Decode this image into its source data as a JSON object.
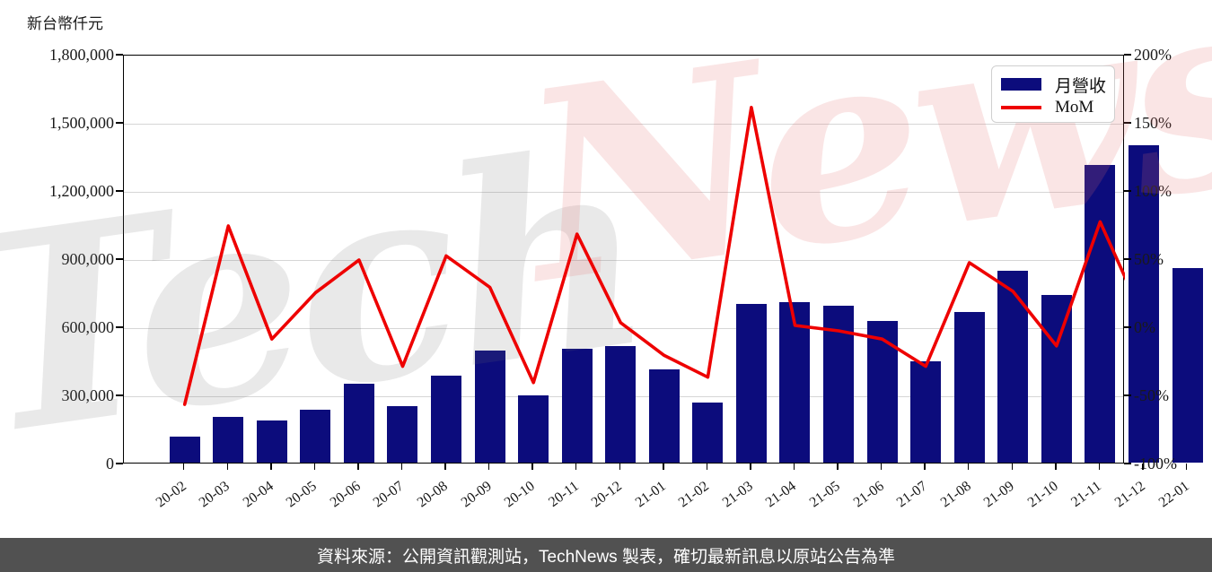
{
  "chart_title": "新台幣仟元",
  "legend": {
    "bar_label": "月營收",
    "line_label": "MoM"
  },
  "watermark": {
    "gray_text": "Tech",
    "pink_text": "News"
  },
  "footer": {
    "text": "資料來源：公開資訊觀測站，TechNews 製表，確切最新訊息以原站公告為準"
  },
  "colors": {
    "bar": "#0c0c7c",
    "line": "#ee0000",
    "grid": "#d6d6d6",
    "axis": "#000000",
    "footer_bg": "#515151",
    "footer_text": "#ffffff",
    "watermark_gray": "rgba(110,110,110,0.15)",
    "watermark_pink": "rgba(228,110,110,0.18)"
  },
  "chart_data": {
    "type": "bar",
    "subtype": "bar+line dual-axis combo",
    "title": "新台幣仟元",
    "categories": [
      "20-02",
      "20-03",
      "20-04",
      "20-05",
      "20-06",
      "20-07",
      "20-08",
      "20-09",
      "20-10",
      "20-11",
      "20-12",
      "21-01",
      "21-02",
      "21-03",
      "21-04",
      "21-05",
      "21-06",
      "21-07",
      "21-08",
      "21-09",
      "21-10",
      "21-11",
      "21-12",
      "22-01"
    ],
    "series": [
      {
        "name": "月營收",
        "type": "bar",
        "axis": "left",
        "unit": "新台幣仟元",
        "values": [
          115000,
          202000,
          185000,
          234000,
          348000,
          249000,
          381000,
          495000,
          295000,
          502000,
          513000,
          412000,
          264000,
          700000,
          708000,
          690000,
          622000,
          448000,
          664000,
          843000,
          737000,
          1312000,
          1396000,
          856000
        ]
      },
      {
        "name": "MoM",
        "type": "line",
        "axis": "right",
        "unit": "%",
        "values": [
          -56,
          75,
          -8,
          26,
          50,
          -28,
          53,
          30,
          -40,
          69,
          4,
          -20,
          -36,
          162,
          2,
          -2,
          -8,
          -28,
          48,
          27,
          -13,
          78,
          7,
          -39
        ]
      }
    ],
    "left_axis": {
      "title": "新台幣仟元",
      "min": 0,
      "max": 1800000,
      "tick_labels_top_down": [
        "1,800,000",
        "1,500,000",
        "1,200,000",
        "900,000",
        "600,000",
        "300,000",
        "0"
      ]
    },
    "right_axis": {
      "min": -100,
      "max": 200,
      "tick_labels_top_down": [
        "200%",
        "150%",
        "100%",
        "50%",
        "0%",
        "-50%",
        "-100%"
      ]
    },
    "grid": "horizontal gridlines on",
    "legend_position": "top-right inside plot"
  }
}
